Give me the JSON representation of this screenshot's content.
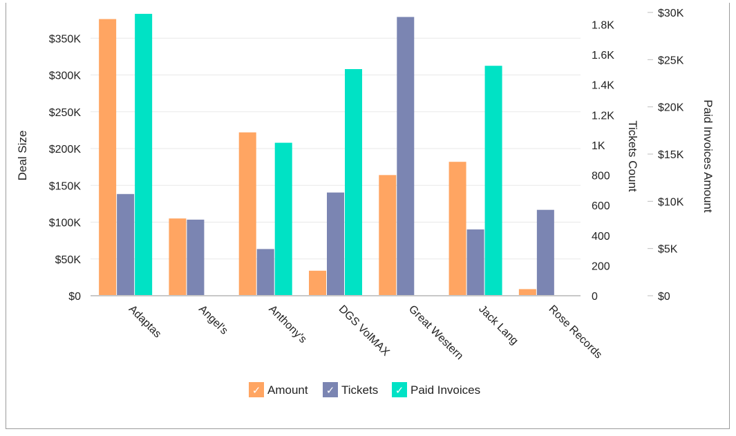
{
  "chart_data": {
    "type": "bar",
    "categories": [
      "Adaptas",
      "Angel's",
      "Anthony's",
      "DGS VolMAX",
      "Great Western",
      "Jack Lang",
      "Rose Records"
    ],
    "series": [
      {
        "name": "Amount",
        "axis": "left",
        "color": "#FFA562",
        "values": [
          376000,
          105000,
          222000,
          34000,
          164000,
          182000,
          9000
        ]
      },
      {
        "name": "Tickets",
        "axis": "right1",
        "color": "#7B85B2",
        "values": [
          675,
          505,
          310,
          685,
          1850,
          440,
          570
        ]
      },
      {
        "name": "Paid Invoices",
        "axis": "right2",
        "color": "#00E2C5",
        "values": [
          29850,
          0,
          16200,
          24000,
          0,
          24350,
          0
        ]
      }
    ],
    "axes": {
      "left": {
        "label": "Deal Size",
        "ylim": [
          0,
          385000
        ],
        "ticks": [
          "$0",
          "$50K",
          "$100K",
          "$150K",
          "$200K",
          "$250K",
          "$300K",
          "$350K"
        ],
        "tick_values": [
          0,
          50000,
          100000,
          150000,
          200000,
          250000,
          300000,
          350000
        ]
      },
      "right1": {
        "label": "Tickets Count",
        "ylim": [
          0,
          1880
        ],
        "ticks": [
          "0",
          "200",
          "400",
          "600",
          "800",
          "1K",
          "1.2K",
          "1.4K",
          "1.6K",
          "1.8K"
        ],
        "tick_values": [
          0,
          200,
          400,
          600,
          800,
          1000,
          1200,
          1400,
          1600,
          1800
        ]
      },
      "right2": {
        "label": "Paid Invoices Amount",
        "ylim": [
          0,
          30000
        ],
        "ticks": [
          "$0",
          "$5K",
          "$10K",
          "$15K",
          "$20K",
          "$25K",
          "$30K"
        ],
        "tick_values": [
          0,
          5000,
          10000,
          15000,
          20000,
          25000,
          30000
        ]
      }
    },
    "grid": true,
    "legend_position": "bottom-center",
    "legend": [
      {
        "label": "Amount",
        "color": "#FFA562",
        "check": "✓"
      },
      {
        "label": "Tickets",
        "color": "#7B85B2",
        "check": "✓"
      },
      {
        "label": "Paid Invoices",
        "color": "#00E2C5",
        "check": "✓"
      }
    ]
  }
}
